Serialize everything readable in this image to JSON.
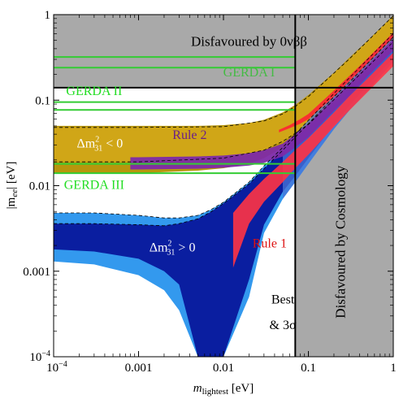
{
  "chart_data": {
    "type": "area",
    "xlabel": {
      "main": "m",
      "sub": "lightest",
      "unit": " [eV]"
    },
    "ylabel": {
      "main": "|m",
      "sub": "ee",
      "unit": "| [eV]"
    },
    "x_scale": "log",
    "y_scale": "log",
    "xlim": [
      0.0001,
      1
    ],
    "ylim": [
      0.0001,
      1
    ],
    "x_ticks": [
      {
        "value": 0.0001,
        "label": "10^-4"
      },
      {
        "value": 0.001,
        "label": "0.001"
      },
      {
        "value": 0.01,
        "label": "0.01"
      },
      {
        "value": 0.1,
        "label": "0.1"
      },
      {
        "value": 1,
        "label": "1"
      }
    ],
    "y_ticks": [
      {
        "value": 0.0001,
        "label": "10^-4"
      },
      {
        "value": 0.001,
        "label": "0.001"
      },
      {
        "value": 0.01,
        "label": "0.01"
      },
      {
        "value": 0.1,
        "label": "0.1"
      },
      {
        "value": 1,
        "label": "1"
      }
    ],
    "exclusion_regions": {
      "double_beta_bound_y": 0.14,
      "cosmology_bound_x": 0.07
    },
    "gerda_lines": [
      {
        "name": "GERDA I",
        "values": [
          0.24,
          0.32
        ]
      },
      {
        "name": "GERDA II",
        "values": [
          0.077,
          0.095
        ]
      },
      {
        "name": "GERDA III",
        "values": [
          0.014,
          0.018
        ]
      }
    ],
    "inverted_band_3sigma": {
      "x": [
        0.0001,
        0.001,
        0.005,
        0.01,
        0.02,
        0.03,
        0.05,
        0.07,
        0.1,
        0.2,
        0.3,
        0.5,
        1
      ],
      "low": [
        0.014,
        0.014,
        0.015,
        0.016,
        0.018,
        0.021,
        0.028,
        0.036,
        0.047,
        0.09,
        0.13,
        0.21,
        0.42
      ],
      "high": [
        0.05,
        0.05,
        0.05,
        0.051,
        0.054,
        0.059,
        0.072,
        0.088,
        0.115,
        0.21,
        0.31,
        0.5,
        0.98
      ]
    },
    "inverted_band_best": {
      "x": [
        0.0001,
        0.001,
        0.01,
        0.03,
        0.05,
        0.07,
        0.1,
        0.3,
        1
      ],
      "low": [
        0.019,
        0.019,
        0.021,
        0.026,
        0.033,
        0.041,
        0.052,
        0.15,
        0.48
      ],
      "high": [
        0.048,
        0.048,
        0.049,
        0.057,
        0.069,
        0.084,
        0.11,
        0.3,
        0.97
      ]
    },
    "normal_band_3sigma": {
      "x": [
        0.0001,
        0.0003,
        0.001,
        0.002,
        0.003,
        0.005,
        0.007,
        0.01,
        0.02,
        0.03,
        0.05,
        0.07,
        0.1,
        0.2,
        0.3,
        0.5,
        1
      ],
      "low": [
        0.0013,
        0.0012,
        0.0009,
        0.0006,
        0.00035,
        0.0001,
        0.0001,
        0.0001,
        0.0005,
        0.0028,
        0.007,
        0.011,
        0.018,
        0.046,
        0.075,
        0.13,
        0.28
      ],
      "high": [
        0.0048,
        0.0048,
        0.0045,
        0.0042,
        0.0042,
        0.0045,
        0.0052,
        0.0064,
        0.011,
        0.017,
        0.028,
        0.04,
        0.058,
        0.12,
        0.18,
        0.3,
        0.6
      ]
    },
    "normal_band_best": {
      "x": [
        0.0001,
        0.0003,
        0.001,
        0.002,
        0.003,
        0.005,
        0.007,
        0.01,
        0.02,
        0.03,
        0.05,
        0.07,
        0.1,
        0.2,
        0.3,
        0.5,
        1
      ],
      "low": [
        0.0018,
        0.0017,
        0.0014,
        0.001,
        0.0007,
        0.0001,
        0.0001,
        0.0001,
        0.0008,
        0.0035,
        0.0085,
        0.013,
        0.021,
        0.052,
        0.085,
        0.15,
        0.31
      ],
      "high": [
        0.0036,
        0.0036,
        0.0035,
        0.0034,
        0.0036,
        0.0041,
        0.0049,
        0.0062,
        0.0105,
        0.0158,
        0.026,
        0.037,
        0.053,
        0.11,
        0.16,
        0.27,
        0.55
      ]
    },
    "rule_1_region": {
      "x": [
        0.013,
        0.02,
        0.03,
        0.05,
        0.07,
        0.1,
        0.2,
        0.3,
        0.5,
        1
      ],
      "low": [
        0.0011,
        0.0036,
        0.0065,
        0.011,
        0.016,
        0.023,
        0.049,
        0.075,
        0.125,
        0.25
      ],
      "high": [
        0.0048,
        0.008,
        0.012,
        0.019,
        0.026,
        0.036,
        0.072,
        0.11,
        0.18,
        0.36
      ]
    },
    "rule_2_region": {
      "x": [
        0.0008,
        0.001,
        0.005,
        0.01,
        0.02,
        0.03,
        0.05,
        0.07,
        0.1,
        0.2,
        0.3,
        0.5,
        1
      ],
      "low": [
        0.0155,
        0.0155,
        0.0158,
        0.0162,
        0.0172,
        0.0185,
        0.022,
        0.028,
        0.037,
        0.075,
        0.11,
        0.19,
        0.38
      ],
      "high": [
        0.0215,
        0.0215,
        0.022,
        0.0225,
        0.024,
        0.026,
        0.031,
        0.04,
        0.053,
        0.105,
        0.155,
        0.26,
        0.52
      ]
    },
    "rule_1_highdensity": {
      "x": [
        0.045,
        0.06,
        0.08,
        0.1,
        0.2,
        0.3,
        0.5,
        1
      ],
      "low": [
        0.042,
        0.047,
        0.053,
        0.06,
        0.11,
        0.165,
        0.27,
        0.54
      ],
      "high": [
        0.045,
        0.051,
        0.06,
        0.069,
        0.13,
        0.19,
        0.31,
        0.62
      ]
    },
    "colors": {
      "disfavoured_fill": "#a9a9a9",
      "frame_line": "#000000",
      "gerda_line": "#33cc33",
      "inverted_3sigma": "#b8960c",
      "inverted_best": "#d4a91a",
      "normal_3sigma": "#3399ee",
      "normal_best": "#0a1ea0",
      "rule_1": "#ff3344",
      "rule_2": "#7d2aa8",
      "overlap_blue": "#4a76d8"
    },
    "annotations": [
      {
        "key": "dbb",
        "text": "Disfavoured by 0νββ",
        "x": 0.02,
        "y": 0.43,
        "color": "#000000",
        "size": 17
      },
      {
        "key": "gerda1",
        "text": "GERDA I",
        "x": 0.02,
        "y": 0.19,
        "color": "#44bb44",
        "size": 16
      },
      {
        "key": "gerda2",
        "text": "GERDA II",
        "x": 0.0003,
        "y": 0.115,
        "color": "#22dd22",
        "size": 16
      },
      {
        "key": "gerda3",
        "text": "GERDA III",
        "x": 0.0003,
        "y": 0.0092,
        "color": "#22dd22",
        "size": 16
      },
      {
        "key": "rule1",
        "text": "Rule 1",
        "x": 0.035,
        "y": 0.0019,
        "color": "#dd1111",
        "size": 16
      },
      {
        "key": "rule2",
        "text": "Rule 2",
        "x": 0.004,
        "y": 0.035,
        "color": "#6a1f8a",
        "size": 16
      },
      {
        "key": "best",
        "text": "Best",
        "x": 0.05,
        "y": 0.00042,
        "color": "#000000",
        "size": 16
      },
      {
        "key": "sigma",
        "text": "& 3σ",
        "x": 0.05,
        "y": 0.00021,
        "color": "#000000",
        "size": 16
      },
      {
        "key": "cosmo",
        "text": "Disfavoured by Cosmology",
        "x": 0.27,
        "y": 0.0022,
        "color": "#000000",
        "size": 17,
        "rotate": -90
      }
    ],
    "inverted_label": {
      "base": "Δm",
      "sup": "2",
      "sub": "31",
      "rel": " < 0"
    },
    "normal_label": {
      "base": "Δm",
      "sup": "2",
      "sub": "31",
      "rel": " > 0"
    }
  }
}
